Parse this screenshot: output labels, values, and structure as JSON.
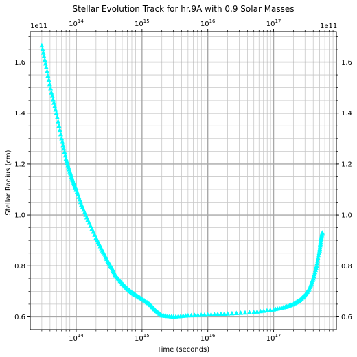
{
  "chart_data": {
    "type": "scatter",
    "title": "Stellar Evolution Track for hr.9A with 0.9 Solar Masses",
    "xlabel": "Time (seconds)",
    "ylabel": "Stellar Radius (cm)",
    "x_scale": "log",
    "xlim": [
      20000000000000.0,
      9e+17
    ],
    "ylim": [
      0.55,
      1.72
    ],
    "y_multiplier_label": "1e11",
    "x_ticks": [
      100000000000000.0,
      1000000000000000.0,
      1e+16,
      1e+17
    ],
    "x_tick_labels": [
      "10^14",
      "10^15",
      "10^16",
      "10^17"
    ],
    "y_ticks": [
      0.6,
      0.8,
      1.0,
      1.2,
      1.4,
      1.6
    ],
    "y_tick_labels": [
      "0.6",
      "0.8",
      "1.0",
      "1.2",
      "1.4",
      "1.6"
    ],
    "grid": true,
    "mirrored_axes": true,
    "marker": "triangle-up",
    "color": "#00ffff",
    "series": [
      {
        "x": [
          30000000000000.0,
          35000000000000.0,
          42000000000000.0,
          50000000000000.0,
          60000000000000.0,
          70000000000000.0,
          80000000000000.0,
          90000000000000.0,
          100000000000000.0,
          120000000000000.0,
          150000000000000.0,
          200000000000000.0,
          250000000000000.0,
          300000000000000.0,
          350000000000000.0,
          400000000000000.0,
          500000000000000.0,
          600000000000000.0,
          700000000000000.0,
          800000000000000.0,
          1000000000000000.0,
          1300000000000000.0,
          1600000000000000.0,
          2000000000000000.0,
          3000000000000000.0,
          5000000000000000.0,
          1e+16,
          2e+16,
          5e+16,
          1e+17,
          1.5e+17,
          2e+17,
          2.5e+17,
          3e+17,
          3.5e+17,
          4e+17,
          4.5e+17,
          5e+17,
          5.2e+17,
          5.5e+17
        ],
        "y": [
          1.665,
          1.58,
          1.48,
          1.4,
          1.3,
          1.22,
          1.17,
          1.13,
          1.1,
          1.04,
          0.98,
          0.91,
          0.86,
          0.82,
          0.79,
          0.76,
          0.73,
          0.71,
          0.695,
          0.685,
          0.67,
          0.65,
          0.625,
          0.605,
          0.6,
          0.605,
          0.608,
          0.612,
          0.618,
          0.628,
          0.638,
          0.65,
          0.665,
          0.685,
          0.71,
          0.75,
          0.8,
          0.86,
          0.9,
          0.93
        ]
      }
    ]
  }
}
